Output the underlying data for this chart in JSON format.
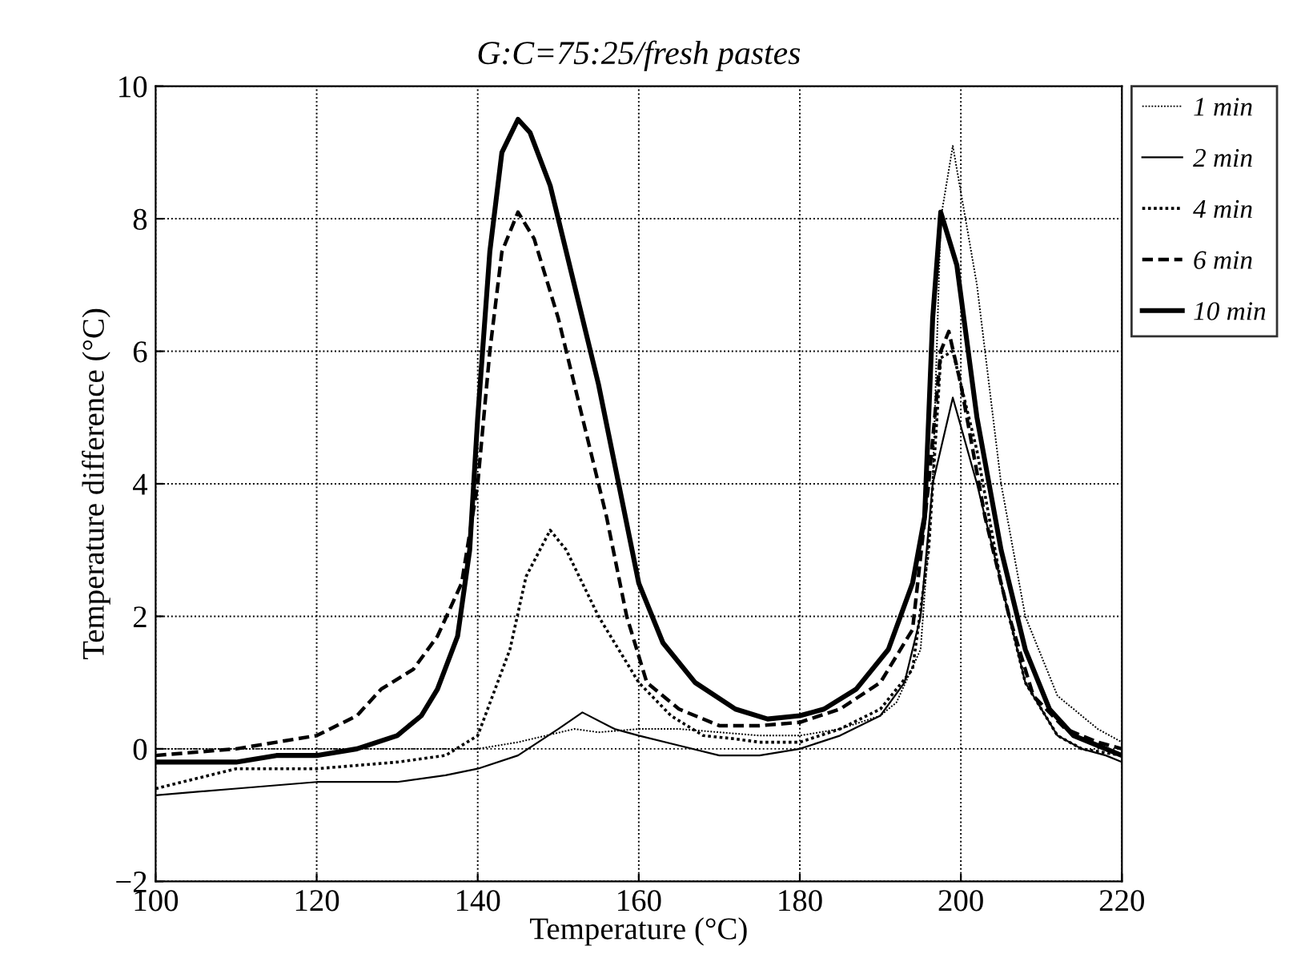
{
  "chart_data": {
    "type": "line",
    "title": "G:C=75:25/fresh pastes",
    "xlabel": "Temperature (°C)",
    "ylabel": "Temperature difference (°C)",
    "xlim": [
      100,
      220
    ],
    "ylim": [
      -2,
      10
    ],
    "xticks": [
      100,
      120,
      140,
      160,
      180,
      200,
      220
    ],
    "yticks": [
      {
        "value": -2,
        "label": "−2"
      },
      0,
      2,
      4,
      6,
      8,
      10
    ],
    "grid": true,
    "legend": "right",
    "marker": "none",
    "series": [
      {
        "name": "1 min",
        "color": "#000000",
        "line_style": "dotted",
        "x": [
          100,
          110,
          120,
          130,
          140,
          145,
          152,
          155,
          160,
          165,
          170,
          175,
          180,
          185,
          190,
          192,
          195,
          196.5,
          197.5,
          199,
          202,
          205,
          208,
          212,
          217,
          220
        ],
        "values": [
          0,
          0,
          0,
          0,
          0,
          0.1,
          0.3,
          0.25,
          0.3,
          0.3,
          0.25,
          0.2,
          0.2,
          0.3,
          0.5,
          0.7,
          1.5,
          4,
          8,
          9.1,
          7,
          4,
          2,
          0.8,
          0.3,
          0.1
        ]
      },
      {
        "name": "2 min",
        "color": "#000000",
        "line_style": "solid",
        "x": [
          100,
          110,
          120,
          130,
          136,
          140,
          145,
          150,
          153,
          157,
          160,
          165,
          170,
          175,
          180,
          185,
          190,
          193,
          195,
          196.5,
          199,
          202,
          205,
          208,
          212,
          215,
          218,
          220
        ],
        "values": [
          -0.7,
          -0.6,
          -0.5,
          -0.5,
          -0.4,
          -0.3,
          -0.1,
          0.3,
          0.55,
          0.3,
          0.2,
          0.05,
          -0.1,
          -0.1,
          0,
          0.2,
          0.5,
          1,
          2,
          4,
          5.3,
          4,
          2.5,
          1,
          0.2,
          0,
          -0.1,
          -0.2
        ]
      },
      {
        "name": "4 min",
        "color": "#000000",
        "line_style": "dotted",
        "x": [
          100,
          105,
          110,
          120,
          130,
          136,
          140,
          144,
          146,
          149,
          151,
          155,
          160,
          164,
          168,
          172,
          175,
          180,
          185,
          190,
          194,
          196,
          197.5,
          199,
          202,
          205,
          208,
          212,
          215,
          220
        ],
        "values": [
          -0.6,
          -0.45,
          -0.3,
          -0.3,
          -0.2,
          -0.1,
          0.2,
          1.5,
          2.6,
          3.3,
          3,
          2,
          1,
          0.5,
          0.2,
          0.15,
          0.1,
          0.1,
          0.3,
          0.6,
          1.2,
          3,
          5.9,
          6,
          4.5,
          2.5,
          1,
          0.2,
          0,
          -0.1
        ]
      },
      {
        "name": "6 min",
        "color": "#000000",
        "line_style": "dashed",
        "x": [
          100,
          110,
          115,
          120,
          125,
          128,
          132,
          135,
          138,
          140,
          141.5,
          143,
          145,
          147,
          150,
          153,
          156,
          158.5,
          161,
          165,
          170,
          175,
          180,
          185,
          190,
          194,
          196,
          197.5,
          198.5,
          200,
          203,
          206,
          209,
          213,
          217,
          220
        ],
        "values": [
          -0.1,
          0,
          0.1,
          0.2,
          0.5,
          0.9,
          1.2,
          1.7,
          2.5,
          4,
          6,
          7.5,
          8.1,
          7.7,
          6.5,
          5,
          3.5,
          2,
          1,
          0.6,
          0.35,
          0.35,
          0.4,
          0.6,
          1,
          1.8,
          4,
          6,
          6.3,
          5.5,
          3.5,
          2,
          0.8,
          0.3,
          0.1,
          0
        ]
      },
      {
        "name": "10 min",
        "color": "#000000",
        "line_style": "solid",
        "x": [
          100,
          110,
          115,
          120,
          125,
          130,
          133,
          135,
          137.5,
          139,
          140,
          141.5,
          143,
          145,
          146.5,
          149,
          152,
          155,
          157.5,
          160,
          163,
          167,
          172,
          176,
          180,
          183,
          187,
          191,
          194,
          195.5,
          196.5,
          197.5,
          199.5,
          202,
          205,
          208,
          211,
          214,
          218,
          220
        ],
        "values": [
          -0.2,
          -0.2,
          -0.1,
          -0.1,
          0,
          0.2,
          0.5,
          0.9,
          1.7,
          3,
          5,
          7.5,
          9,
          9.5,
          9.3,
          8.5,
          7,
          5.5,
          4,
          2.5,
          1.6,
          1,
          0.6,
          0.45,
          0.5,
          0.6,
          0.9,
          1.5,
          2.5,
          3.5,
          6.5,
          8.1,
          7.3,
          5,
          3,
          1.5,
          0.6,
          0.2,
          0,
          -0.1
        ]
      }
    ]
  }
}
